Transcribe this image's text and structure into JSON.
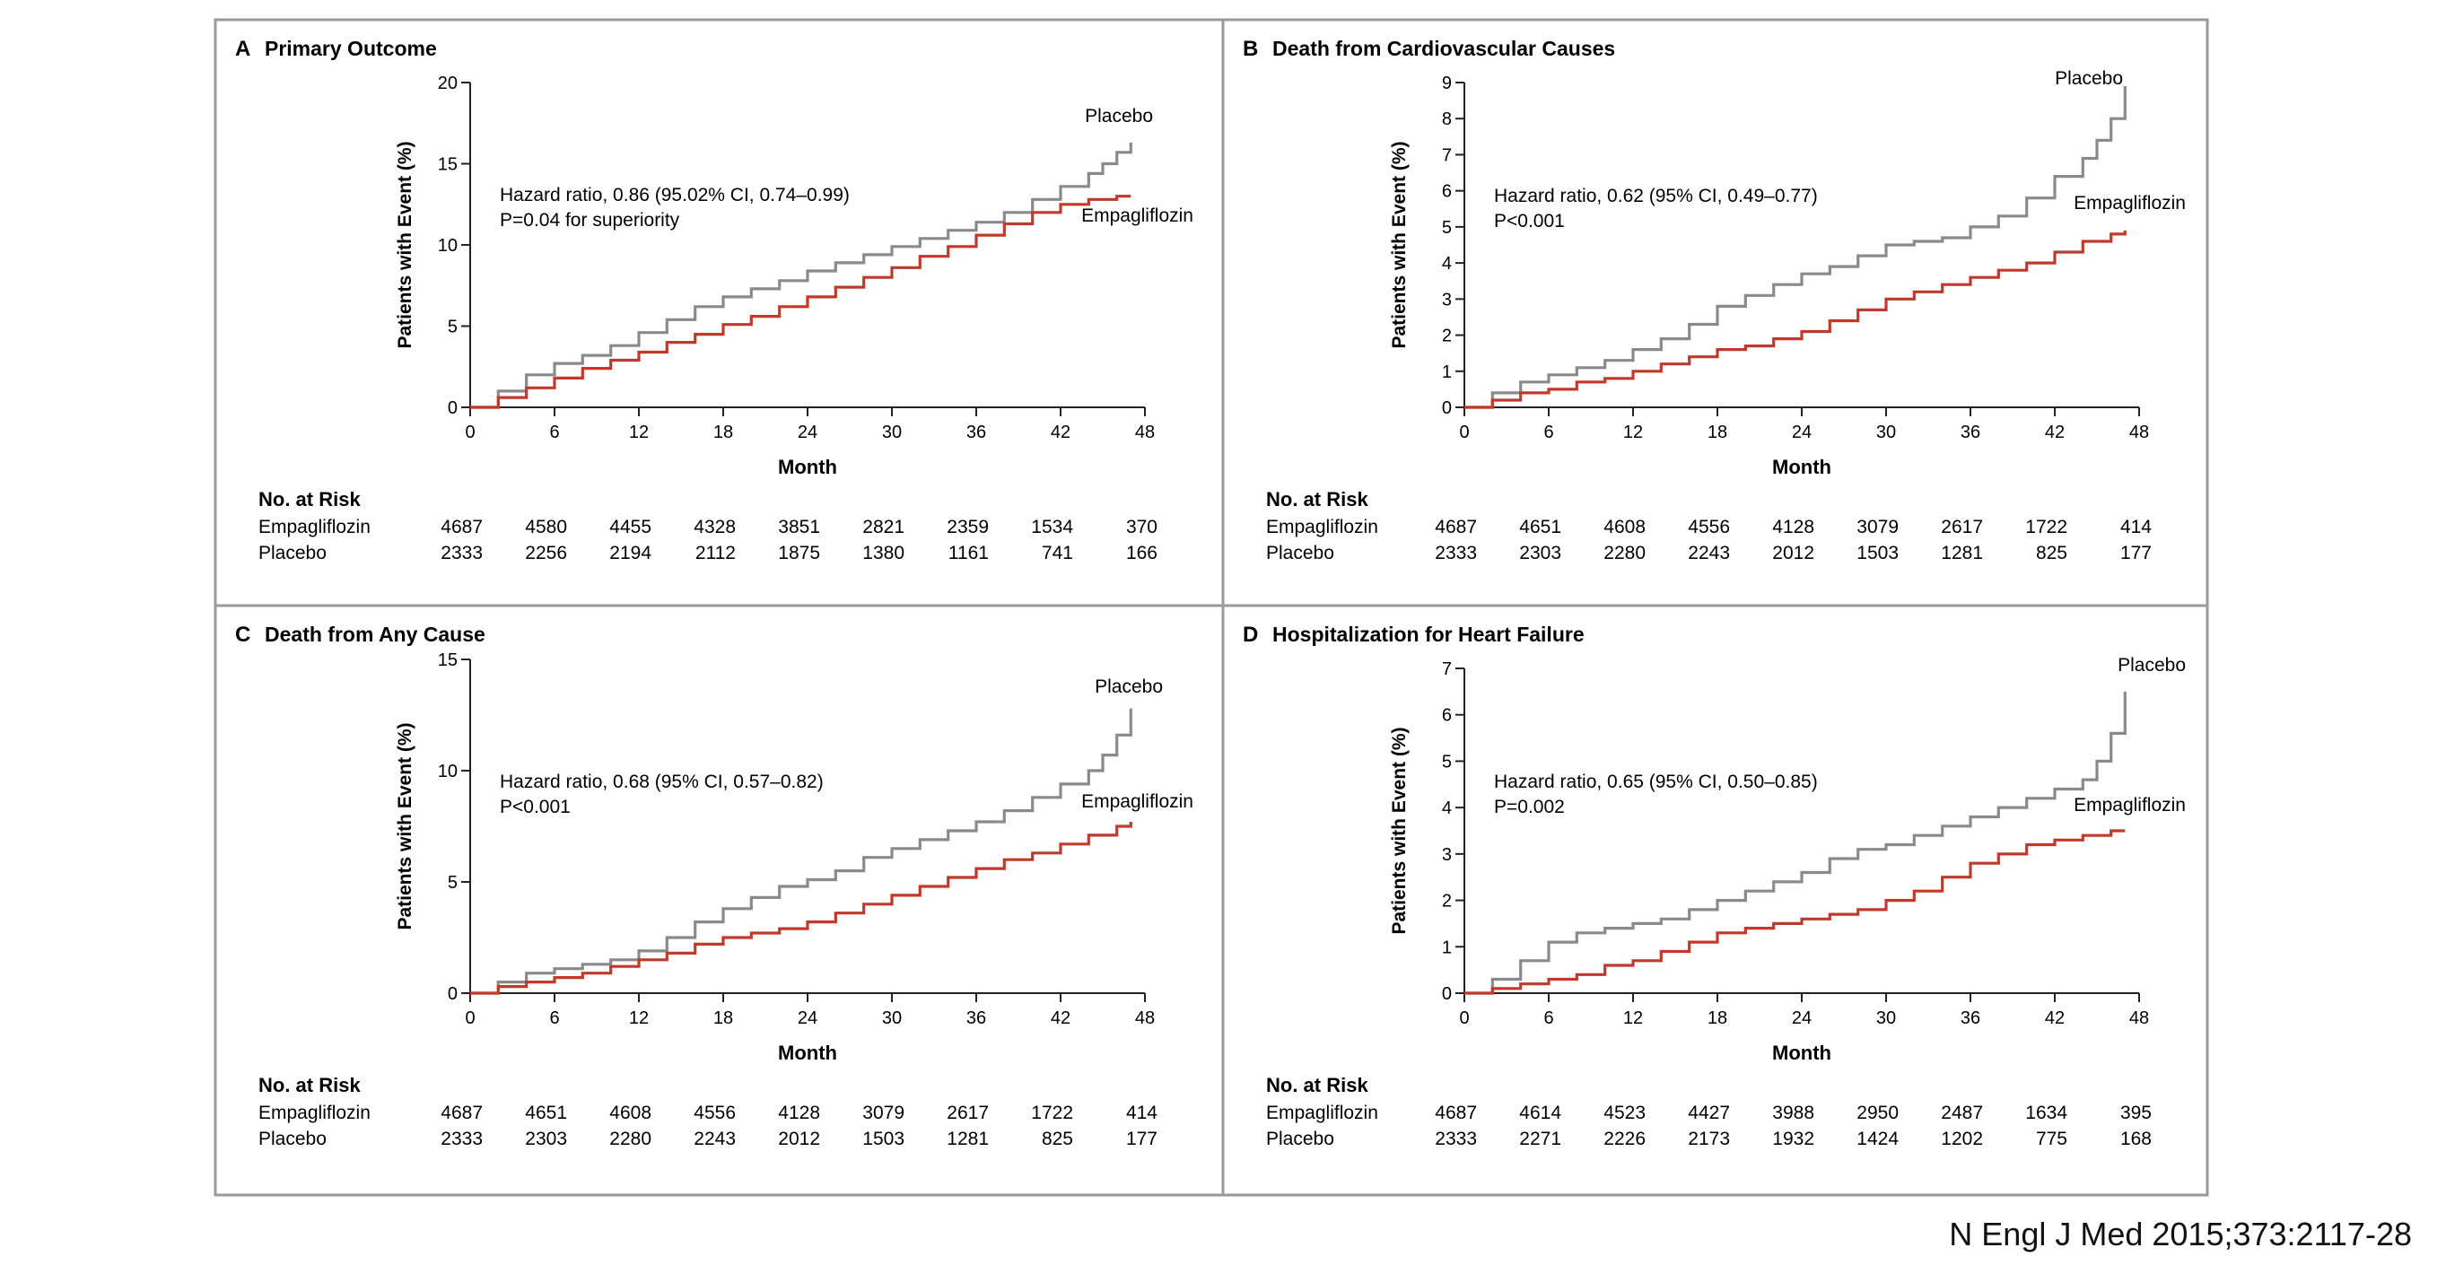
{
  "citation": "N Engl J Med 2015;373:2117-28",
  "colors": {
    "placebo": "#8a8a8a",
    "empagliflozin": "#c0392b",
    "frame": "#9a9a9a",
    "axis": "#222222"
  },
  "risk_header": "No. at Risk",
  "chart_data": [
    {
      "type": "line",
      "letter": "A",
      "title": "Primary Outcome",
      "xlabel": "Month",
      "ylabel": "Patients with Event (%)",
      "xlim": [
        0,
        48
      ],
      "ylim": [
        0,
        20
      ],
      "xticks": [
        0,
        6,
        12,
        18,
        24,
        30,
        36,
        42,
        48
      ],
      "yticks": [
        0,
        5,
        10,
        15,
        20
      ],
      "series": [
        {
          "name": "Placebo",
          "color": "#8a8a8a",
          "x": [
            0,
            2,
            4,
            6,
            8,
            10,
            12,
            14,
            16,
            18,
            20,
            22,
            24,
            26,
            28,
            30,
            32,
            34,
            36,
            38,
            40,
            42,
            44,
            45,
            46,
            47
          ],
          "y": [
            0,
            1.0,
            2.0,
            2.7,
            3.2,
            3.8,
            4.6,
            5.4,
            6.2,
            6.8,
            7.3,
            7.8,
            8.4,
            8.9,
            9.4,
            9.9,
            10.4,
            10.9,
            11.4,
            12.0,
            12.8,
            13.6,
            14.4,
            15.0,
            15.7,
            16.3
          ]
        },
        {
          "name": "Empagliflozin",
          "color": "#c0392b",
          "x": [
            0,
            2,
            4,
            6,
            8,
            10,
            12,
            14,
            16,
            18,
            20,
            22,
            24,
            26,
            28,
            30,
            32,
            34,
            36,
            38,
            40,
            42,
            44,
            46,
            47
          ],
          "y": [
            0,
            0.6,
            1.2,
            1.8,
            2.4,
            2.9,
            3.4,
            4.0,
            4.5,
            5.1,
            5.6,
            6.2,
            6.8,
            7.4,
            8.0,
            8.6,
            9.3,
            9.9,
            10.6,
            11.3,
            12.0,
            12.5,
            12.8,
            13.0,
            13.0
          ]
        }
      ],
      "annotations": {
        "hazard_line1": "Hazard ratio, 0.86 (95.02% CI, 0.74–0.99)",
        "hazard_line2": "P=0.04 for superiority"
      },
      "risk_table": {
        "rows": [
          {
            "label": "Empagliflozin",
            "values": [
              "4687",
              "4580",
              "4455",
              "4328",
              "3851",
              "2821",
              "2359",
              "1534",
              "370"
            ]
          },
          {
            "label": "Placebo",
            "values": [
              "2333",
              "2256",
              "2194",
              "2112",
              "1875",
              "1380",
              "1161",
              "741",
              "166"
            ]
          }
        ]
      }
    },
    {
      "type": "line",
      "letter": "B",
      "title": "Death from Cardiovascular Causes",
      "xlabel": "Month",
      "ylabel": "Patients with Event (%)",
      "xlim": [
        0,
        48
      ],
      "ylim": [
        0,
        9
      ],
      "xticks": [
        0,
        6,
        12,
        18,
        24,
        30,
        36,
        42,
        48
      ],
      "yticks": [
        0,
        1,
        2,
        3,
        4,
        5,
        6,
        7,
        8,
        9
      ],
      "series": [
        {
          "name": "Placebo",
          "color": "#8a8a8a",
          "x": [
            0,
            2,
            4,
            6,
            8,
            10,
            12,
            14,
            16,
            18,
            20,
            22,
            24,
            26,
            28,
            30,
            32,
            34,
            36,
            38,
            40,
            42,
            44,
            45,
            46,
            47
          ],
          "y": [
            0,
            0.4,
            0.7,
            0.9,
            1.1,
            1.3,
            1.6,
            1.9,
            2.3,
            2.8,
            3.1,
            3.4,
            3.7,
            3.9,
            4.2,
            4.5,
            4.6,
            4.7,
            5.0,
            5.3,
            5.8,
            6.4,
            6.9,
            7.4,
            8.0,
            8.9
          ]
        },
        {
          "name": "Empagliflozin",
          "color": "#c0392b",
          "x": [
            0,
            2,
            4,
            6,
            8,
            10,
            12,
            14,
            16,
            18,
            20,
            22,
            24,
            26,
            28,
            30,
            32,
            34,
            36,
            38,
            40,
            42,
            44,
            46,
            47
          ],
          "y": [
            0,
            0.2,
            0.4,
            0.5,
            0.7,
            0.8,
            1.0,
            1.2,
            1.4,
            1.6,
            1.7,
            1.9,
            2.1,
            2.4,
            2.7,
            3.0,
            3.2,
            3.4,
            3.6,
            3.8,
            4.0,
            4.3,
            4.6,
            4.8,
            4.9
          ]
        }
      ],
      "annotations": {
        "hazard_line1": "Hazard ratio, 0.62 (95% CI, 0.49–0.77)",
        "hazard_line2": "P<0.001"
      },
      "risk_table": {
        "rows": [
          {
            "label": "Empagliflozin",
            "values": [
              "4687",
              "4651",
              "4608",
              "4556",
              "4128",
              "3079",
              "2617",
              "1722",
              "414"
            ]
          },
          {
            "label": "Placebo",
            "values": [
              "2333",
              "2303",
              "2280",
              "2243",
              "2012",
              "1503",
              "1281",
              "825",
              "177"
            ]
          }
        ]
      }
    },
    {
      "type": "line",
      "letter": "C",
      "title": "Death from Any Cause",
      "xlabel": "Month",
      "ylabel": "Patients with Event (%)",
      "xlim": [
        0,
        48
      ],
      "ylim": [
        0,
        15
      ],
      "xticks": [
        0,
        6,
        12,
        18,
        24,
        30,
        36,
        42,
        48
      ],
      "yticks": [
        0,
        5,
        10,
        15
      ],
      "series": [
        {
          "name": "Placebo",
          "color": "#8a8a8a",
          "x": [
            0,
            2,
            4,
            6,
            8,
            10,
            12,
            14,
            16,
            18,
            20,
            22,
            24,
            26,
            28,
            30,
            32,
            34,
            36,
            38,
            40,
            42,
            44,
            45,
            46,
            47
          ],
          "y": [
            0,
            0.5,
            0.9,
            1.1,
            1.3,
            1.5,
            1.9,
            2.5,
            3.2,
            3.8,
            4.3,
            4.8,
            5.1,
            5.5,
            6.1,
            6.5,
            6.9,
            7.3,
            7.7,
            8.2,
            8.8,
            9.4,
            10.0,
            10.7,
            11.6,
            12.8
          ]
        },
        {
          "name": "Empagliflozin",
          "color": "#c0392b",
          "x": [
            0,
            2,
            4,
            6,
            8,
            10,
            12,
            14,
            16,
            18,
            20,
            22,
            24,
            26,
            28,
            30,
            32,
            34,
            36,
            38,
            40,
            42,
            44,
            46,
            47
          ],
          "y": [
            0,
            0.3,
            0.5,
            0.7,
            0.9,
            1.2,
            1.5,
            1.8,
            2.2,
            2.5,
            2.7,
            2.9,
            3.2,
            3.6,
            4.0,
            4.4,
            4.8,
            5.2,
            5.6,
            6.0,
            6.3,
            6.7,
            7.1,
            7.5,
            7.7
          ]
        }
      ],
      "annotations": {
        "hazard_line1": "Hazard ratio, 0.68 (95% CI, 0.57–0.82)",
        "hazard_line2": "P<0.001"
      },
      "risk_table": {
        "rows": [
          {
            "label": "Empagliflozin",
            "values": [
              "4687",
              "4651",
              "4608",
              "4556",
              "4128",
              "3079",
              "2617",
              "1722",
              "414"
            ]
          },
          {
            "label": "Placebo",
            "values": [
              "2333",
              "2303",
              "2280",
              "2243",
              "2012",
              "1503",
              "1281",
              "825",
              "177"
            ]
          }
        ]
      }
    },
    {
      "type": "line",
      "letter": "D",
      "title": "Hospitalization for Heart Failure",
      "xlabel": "Month",
      "ylabel": "Patients with Event (%)",
      "xlim": [
        0,
        48
      ],
      "ylim": [
        0,
        7
      ],
      "xticks": [
        0,
        6,
        12,
        18,
        24,
        30,
        36,
        42,
        48
      ],
      "yticks": [
        0,
        1,
        2,
        3,
        4,
        5,
        6,
        7
      ],
      "series": [
        {
          "name": "Placebo",
          "color": "#8a8a8a",
          "x": [
            0,
            2,
            4,
            6,
            8,
            10,
            12,
            14,
            16,
            18,
            20,
            22,
            24,
            26,
            28,
            30,
            32,
            34,
            36,
            38,
            40,
            42,
            44,
            45,
            46,
            47
          ],
          "y": [
            0,
            0.3,
            0.7,
            1.1,
            1.3,
            1.4,
            1.5,
            1.6,
            1.8,
            2.0,
            2.2,
            2.4,
            2.6,
            2.9,
            3.1,
            3.2,
            3.4,
            3.6,
            3.8,
            4.0,
            4.2,
            4.4,
            4.6,
            5.0,
            5.6,
            6.5
          ]
        },
        {
          "name": "Empagliflozin",
          "color": "#c0392b",
          "x": [
            0,
            2,
            4,
            6,
            8,
            10,
            12,
            14,
            16,
            18,
            20,
            22,
            24,
            26,
            28,
            30,
            32,
            34,
            36,
            38,
            40,
            42,
            44,
            46,
            47
          ],
          "y": [
            0,
            0.1,
            0.2,
            0.3,
            0.4,
            0.6,
            0.7,
            0.9,
            1.1,
            1.3,
            1.4,
            1.5,
            1.6,
            1.7,
            1.8,
            2.0,
            2.2,
            2.5,
            2.8,
            3.0,
            3.2,
            3.3,
            3.4,
            3.5,
            3.5
          ]
        }
      ],
      "annotations": {
        "hazard_line1": "Hazard ratio, 0.65 (95% CI, 0.50–0.85)",
        "hazard_line2": "P=0.002"
      },
      "risk_table": {
        "rows": [
          {
            "label": "Empagliflozin",
            "values": [
              "4687",
              "4614",
              "4523",
              "4427",
              "3988",
              "2950",
              "2487",
              "1634",
              "395"
            ]
          },
          {
            "label": "Placebo",
            "values": [
              "2333",
              "2271",
              "2226",
              "2173",
              "1932",
              "1424",
              "1202",
              "775",
              "168"
            ]
          }
        ]
      }
    }
  ]
}
